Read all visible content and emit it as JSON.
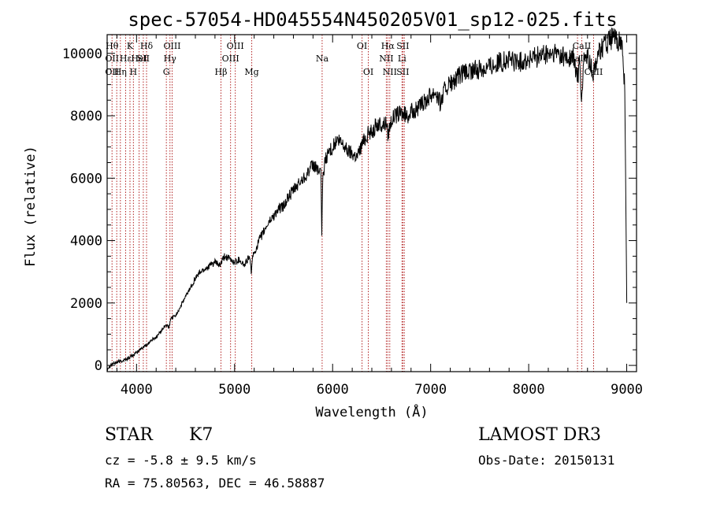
{
  "chart_data": {
    "type": "line",
    "title": "spec-57054-HD045554N450205V01_sp12-025.fits",
    "xlabel": "Wavelength (Å)",
    "ylabel": "Flux (relative)",
    "xlim": [
      3700,
      9100
    ],
    "ylim": [
      -200,
      10600
    ],
    "xticks": [
      4000,
      5000,
      6000,
      7000,
      8000,
      9000
    ],
    "yticks": [
      0,
      2000,
      4000,
      6000,
      8000,
      10000
    ],
    "xtick_labels": [
      "4000",
      "5000",
      "6000",
      "7000",
      "8000",
      "9000"
    ],
    "ytick_labels": [
      "0",
      "2000",
      "4000",
      "6000",
      "8000",
      "10000"
    ],
    "grid": false,
    "series": [
      {
        "name": "spectrum",
        "color": "#000000",
        "x": [
          3700,
          3750,
          3800,
          3850,
          3900,
          3950,
          4000,
          4050,
          4100,
          4150,
          4200,
          4250,
          4300,
          4330,
          4350,
          4400,
          4450,
          4500,
          4550,
          4600,
          4650,
          4700,
          4750,
          4800,
          4850,
          4900,
          4950,
          5000,
          5050,
          5100,
          5150,
          5170,
          5180,
          5200,
          5250,
          5300,
          5350,
          5400,
          5450,
          5500,
          5550,
          5600,
          5650,
          5700,
          5750,
          5800,
          5850,
          5880,
          5890,
          5900,
          5920,
          5950,
          6000,
          6050,
          6100,
          6150,
          6200,
          6250,
          6300,
          6350,
          6400,
          6450,
          6500,
          6550,
          6563,
          6600,
          6650,
          6700,
          6750,
          6800,
          6850,
          6900,
          6950,
          7000,
          7050,
          7100,
          7150,
          7200,
          7250,
          7300,
          7400,
          7500,
          7600,
          7700,
          7800,
          7900,
          8000,
          8100,
          8200,
          8300,
          8400,
          8450,
          8498,
          8520,
          8542,
          8560,
          8600,
          8662,
          8700,
          8750,
          8800,
          8850,
          8900,
          8950,
          8980,
          9000
        ],
        "y": [
          -100,
          50,
          100,
          150,
          200,
          300,
          400,
          550,
          650,
          800,
          900,
          1100,
          1300,
          1200,
          1500,
          1600,
          1900,
          2200,
          2500,
          2800,
          3000,
          3100,
          3200,
          3300,
          3200,
          3500,
          3400,
          3300,
          3400,
          3200,
          3500,
          3000,
          3400,
          3600,
          4000,
          4300,
          4600,
          4800,
          5000,
          5100,
          5400,
          5600,
          5800,
          6000,
          6200,
          6400,
          6300,
          6100,
          4300,
          6000,
          6500,
          6800,
          7000,
          7200,
          7100,
          6900,
          6800,
          6700,
          7100,
          7400,
          7500,
          7700,
          7700,
          7800,
          7400,
          7900,
          8000,
          8100,
          8000,
          8100,
          8200,
          8300,
          8500,
          8700,
          8800,
          8400,
          8900,
          9000,
          9100,
          9300,
          9400,
          9500,
          9600,
          9700,
          9800,
          9700,
          9800,
          9900,
          9950,
          10000,
          9800,
          9900,
          9200,
          9700,
          8400,
          9800,
          9900,
          9300,
          10000,
          10200,
          10300,
          10500,
          10400,
          10300,
          9000,
          2000
        ]
      }
    ],
    "line_color": "#B22222",
    "lines": [
      {
        "x": 3750,
        "labels": [
          "Hθ",
          "OII",
          "OII"
        ],
        "rows": [
          0,
          1,
          2
        ]
      },
      {
        "x": 3798,
        "labels": [],
        "rows": []
      },
      {
        "x": 3835,
        "labels": [
          "Hη"
        ],
        "rows": [
          2
        ]
      },
      {
        "x": 3889,
        "labels": [
          "Hε"
        ],
        "rows": [
          1
        ]
      },
      {
        "x": 3933,
        "labels": [
          "K"
        ],
        "rows": [
          0
        ]
      },
      {
        "x": 3968,
        "labels": [
          "H"
        ],
        "rows": [
          2
        ]
      },
      {
        "x": 4026,
        "labels": [
          "HeI"
        ],
        "rows": [
          1
        ]
      },
      {
        "x": 4069,
        "labels": [
          "SII"
        ],
        "rows": [
          1
        ]
      },
      {
        "x": 4102,
        "labels": [
          "Hδ"
        ],
        "rows": [
          0
        ]
      },
      {
        "x": 4304,
        "labels": [
          "G"
        ],
        "rows": [
          2
        ]
      },
      {
        "x": 4341,
        "labels": [
          "Hγ"
        ],
        "rows": [
          1
        ]
      },
      {
        "x": 4363,
        "labels": [
          "OIII"
        ],
        "rows": [
          0
        ]
      },
      {
        "x": 4861,
        "labels": [
          "Hβ"
        ],
        "rows": [
          2
        ]
      },
      {
        "x": 4959,
        "labels": [
          "OIII"
        ],
        "rows": [
          1
        ]
      },
      {
        "x": 5007,
        "labels": [
          "OIII"
        ],
        "rows": [
          0
        ]
      },
      {
        "x": 5175,
        "labels": [
          "Mg"
        ],
        "rows": [
          2
        ]
      },
      {
        "x": 5893,
        "labels": [
          "Na"
        ],
        "rows": [
          1
        ]
      },
      {
        "x": 6300,
        "labels": [
          "OI"
        ],
        "rows": [
          0
        ]
      },
      {
        "x": 6364,
        "labels": [
          "OI"
        ],
        "rows": [
          2
        ]
      },
      {
        "x": 6548,
        "labels": [
          "NII"
        ],
        "rows": [
          1
        ]
      },
      {
        "x": 6563,
        "labels": [
          "Hα"
        ],
        "rows": [
          0
        ]
      },
      {
        "x": 6583,
        "labels": [
          "NII"
        ],
        "rows": [
          2
        ]
      },
      {
        "x": 6708,
        "labels": [
          "Li"
        ],
        "rows": [
          1
        ]
      },
      {
        "x": 6716,
        "labels": [
          "SII",
          "SII"
        ],
        "rows": [
          0,
          2
        ]
      },
      {
        "x": 6731,
        "labels": [],
        "rows": []
      },
      {
        "x": 8498,
        "labels": [
          "CaII"
        ],
        "rows": [
          1
        ]
      },
      {
        "x": 8542,
        "labels": [
          "CaII"
        ],
        "rows": [
          0
        ]
      },
      {
        "x": 8662,
        "labels": [
          "CaII"
        ],
        "rows": [
          2
        ]
      }
    ]
  },
  "info": {
    "object_class": "STAR",
    "subclass": "K7",
    "survey": "LAMOST DR3",
    "cz": "cz = -5.8 ± 9.5 km/s",
    "obs_date": "Obs-Date: 20150131",
    "coords": "RA =  75.80563, DEC =  46.58887"
  }
}
